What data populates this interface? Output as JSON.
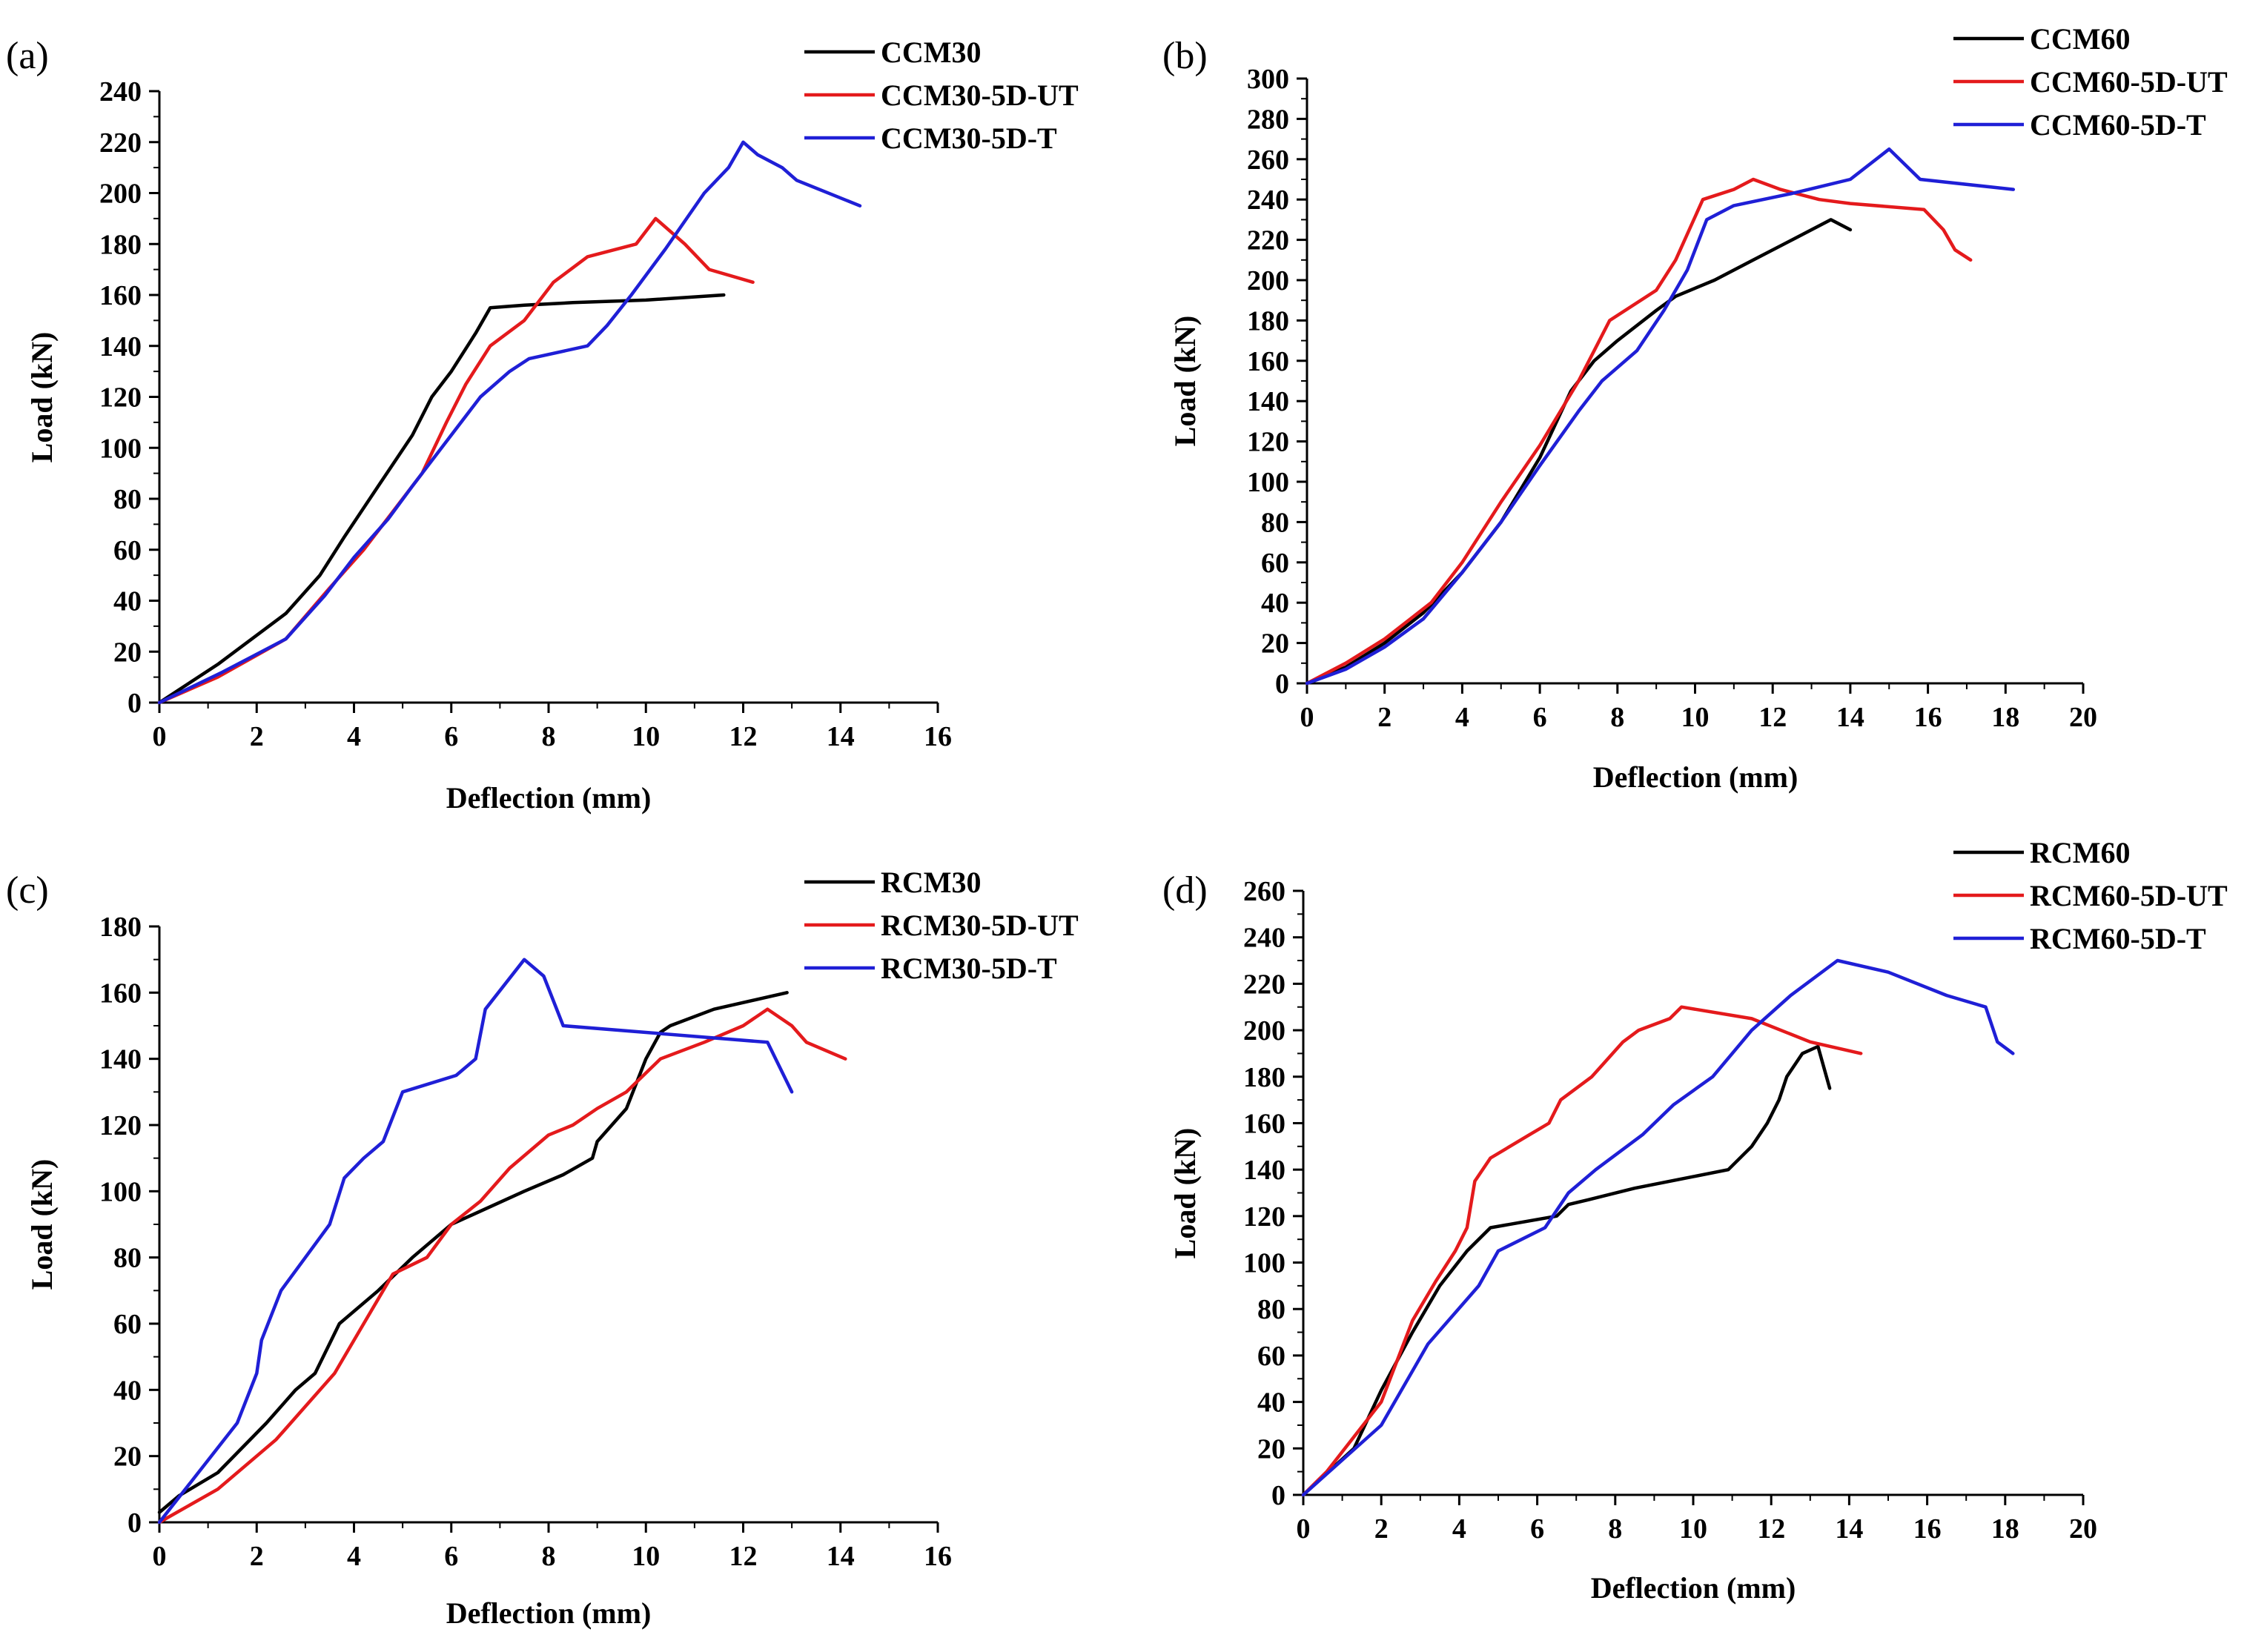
{
  "figure_title": "",
  "colors": {
    "black": "#000000",
    "red": "#e41a1c",
    "blue": "#1f1fd6"
  },
  "chart_data": [
    {
      "type": "line",
      "panel_label": "(a)",
      "xlabel": "Deflection (mm)",
      "ylabel": "Load (kN)",
      "xlim": [
        0,
        16
      ],
      "ylim": [
        0,
        240
      ],
      "xticks": [
        0,
        2,
        4,
        6,
        8,
        10,
        12,
        14,
        16
      ],
      "yticks": [
        0,
        20,
        40,
        60,
        80,
        100,
        120,
        140,
        160,
        180,
        200,
        220,
        240
      ],
      "grid": false,
      "legend_position": "top-right",
      "series": [
        {
          "name": "CCM30",
          "color": "#000000",
          "x": [
            0,
            1.2,
            2.6,
            3.3,
            3.8,
            4.5,
            5.2,
            5.6,
            6.0,
            6.5,
            6.8,
            7.5,
            8.5,
            10.0,
            11.6
          ],
          "y": [
            0,
            15,
            35,
            50,
            65,
            85,
            105,
            120,
            130,
            145,
            155,
            156,
            157,
            158,
            160
          ]
        },
        {
          "name": "CCM30-5D-UT",
          "color": "#e41a1c",
          "x": [
            0,
            1.2,
            2.6,
            3.5,
            4.2,
            4.8,
            5.4,
            5.9,
            6.3,
            6.8,
            7.5,
            8.1,
            8.8,
            9.8,
            10.2,
            10.8,
            11.3,
            12.2
          ],
          "y": [
            0,
            10,
            25,
            45,
            60,
            75,
            90,
            110,
            125,
            140,
            150,
            165,
            175,
            180,
            190,
            180,
            170,
            165
          ]
        },
        {
          "name": "CCM30-5D-T",
          "color": "#1f1fd6",
          "x": [
            0,
            1.3,
            2.6,
            3.4,
            4.0,
            4.7,
            5.2,
            5.8,
            6.6,
            7.2,
            7.6,
            8.8,
            9.2,
            9.7,
            10.4,
            11.2,
            11.7,
            12.0,
            12.3,
            12.8,
            13.1,
            14.4
          ],
          "y": [
            0,
            12,
            25,
            42,
            57,
            72,
            85,
            100,
            120,
            130,
            135,
            140,
            148,
            160,
            178,
            200,
            210,
            220,
            215,
            210,
            205,
            195
          ]
        }
      ]
    },
    {
      "type": "line",
      "panel_label": "(b)",
      "xlabel": "Deflection (mm)",
      "ylabel": "Load (kN)",
      "xlim": [
        0,
        20
      ],
      "ylim": [
        0,
        300
      ],
      "xticks": [
        0,
        2,
        4,
        6,
        8,
        10,
        12,
        14,
        16,
        18,
        20
      ],
      "yticks": [
        0,
        20,
        40,
        60,
        80,
        100,
        120,
        140,
        160,
        180,
        200,
        220,
        240,
        260,
        280,
        300
      ],
      "grid": false,
      "legend_position": "top-right",
      "series": [
        {
          "name": "CCM60",
          "color": "#000000",
          "x": [
            0,
            1,
            2,
            3,
            4,
            5,
            6,
            6.8,
            7.4,
            8,
            9,
            9.5,
            10.5,
            11.5,
            12.5,
            13.5,
            14.0
          ],
          "y": [
            0,
            8,
            20,
            35,
            55,
            80,
            112,
            145,
            160,
            170,
            185,
            192,
            200,
            210,
            220,
            230,
            225
          ]
        },
        {
          "name": "CCM60-5D-UT",
          "color": "#e41a1c",
          "x": [
            0,
            1,
            2,
            3.2,
            4,
            5,
            6,
            7,
            7.8,
            9,
            9.5,
            10.2,
            11.0,
            11.5,
            12.2,
            13.2,
            14.0,
            15.9,
            16.4,
            16.7,
            17.1
          ],
          "y": [
            0,
            10,
            22,
            40,
            60,
            90,
            118,
            150,
            180,
            195,
            210,
            240,
            245,
            250,
            245,
            240,
            238,
            235,
            225,
            215,
            210
          ]
        },
        {
          "name": "CCM60-5D-T",
          "color": "#1f1fd6",
          "x": [
            0,
            1,
            2,
            3,
            4,
            5,
            6,
            7,
            7.6,
            8.5,
            9.2,
            9.8,
            10.3,
            11,
            12.5,
            14,
            15,
            15.8,
            18.2
          ],
          "y": [
            0,
            7,
            18,
            32,
            55,
            80,
            108,
            135,
            150,
            165,
            185,
            205,
            230,
            237,
            243,
            250,
            265,
            250,
            245
          ]
        }
      ]
    },
    {
      "type": "line",
      "panel_label": "(c)",
      "xlabel": "Deflection (mm)",
      "ylabel": "Load (kN)",
      "xlim": [
        0,
        16
      ],
      "ylim": [
        0,
        180
      ],
      "xticks": [
        0,
        2,
        4,
        6,
        8,
        10,
        12,
        14,
        16
      ],
      "yticks": [
        0,
        20,
        40,
        60,
        80,
        100,
        120,
        140,
        160,
        180
      ],
      "grid": false,
      "legend_position": "top-right",
      "series": [
        {
          "name": "RCM30",
          "color": "#000000",
          "x": [
            0,
            0.4,
            1.2,
            2.2,
            2.8,
            3.2,
            3.7,
            4.5,
            5.2,
            6.0,
            7.5,
            8.3,
            8.9,
            9.0,
            9.6,
            10.0,
            10.3,
            10.5,
            11.4,
            12.9
          ],
          "y": [
            3,
            8,
            15,
            30,
            40,
            45,
            60,
            70,
            80,
            90,
            100,
            105,
            110,
            115,
            125,
            140,
            148,
            150,
            155,
            160
          ]
        },
        {
          "name": "RCM30-5D-UT",
          "color": "#e41a1c",
          "x": [
            0,
            1.2,
            2.4,
            3.6,
            4.2,
            4.8,
            5.5,
            6.0,
            6.6,
            7.2,
            8.0,
            8.5,
            9.0,
            9.6,
            10.3,
            11.2,
            12.0,
            12.5,
            13.0,
            13.3,
            14.1
          ],
          "y": [
            0,
            10,
            25,
            45,
            60,
            75,
            80,
            90,
            97,
            107,
            117,
            120,
            125,
            130,
            140,
            145,
            150,
            155,
            150,
            145,
            140
          ]
        },
        {
          "name": "RCM30-5D-T",
          "color": "#1f1fd6",
          "x": [
            0,
            0.8,
            1.6,
            2.0,
            2.1,
            2.5,
            3.0,
            3.5,
            3.8,
            4.2,
            4.6,
            5.0,
            6.1,
            6.5,
            6.7,
            7.5,
            7.9,
            8.3,
            12.5,
            13.0
          ],
          "y": [
            0,
            15,
            30,
            45,
            55,
            70,
            80,
            90,
            104,
            110,
            115,
            130,
            135,
            140,
            155,
            170,
            165,
            150,
            145,
            130
          ]
        }
      ]
    },
    {
      "type": "line",
      "panel_label": "(d)",
      "xlabel": "Deflection (mm)",
      "ylabel": "Load (kN)",
      "xlim": [
        0,
        20
      ],
      "ylim": [
        0,
        260
      ],
      "xticks": [
        0,
        2,
        4,
        6,
        8,
        10,
        12,
        14,
        16,
        18,
        20
      ],
      "yticks": [
        0,
        20,
        40,
        60,
        80,
        100,
        120,
        140,
        160,
        180,
        200,
        220,
        240,
        260
      ],
      "grid": false,
      "legend_position": "top-right",
      "series": [
        {
          "name": "RCM60",
          "color": "#000000",
          "x": [
            0,
            1.3,
            2.0,
            2.8,
            3.5,
            4.2,
            4.8,
            6.5,
            6.8,
            7.3,
            8.5,
            10.0,
            10.9,
            11.5,
            11.9,
            12.2,
            12.4,
            12.8,
            13.2,
            13.5
          ],
          "y": [
            0,
            20,
            45,
            70,
            90,
            105,
            115,
            120,
            125,
            127,
            132,
            137,
            140,
            150,
            160,
            170,
            180,
            190,
            193,
            175
          ]
        },
        {
          "name": "RCM60-5D-UT",
          "color": "#e41a1c",
          "x": [
            0,
            0.6,
            1.3,
            2.0,
            2.8,
            3.4,
            3.9,
            4.2,
            4.4,
            4.8,
            5.8,
            6.3,
            6.6,
            7.4,
            8.2,
            8.6,
            9.4,
            9.7,
            11.5,
            13.0,
            14.3
          ],
          "y": [
            0,
            10,
            25,
            40,
            75,
            92,
            105,
            115,
            135,
            145,
            155,
            160,
            170,
            180,
            195,
            200,
            205,
            210,
            205,
            195,
            190
          ]
        },
        {
          "name": "RCM60-5D-T",
          "color": "#1f1fd6",
          "x": [
            0,
            1.0,
            2.0,
            3.2,
            4.5,
            5.0,
            6.2,
            6.8,
            7.5,
            8.7,
            9.5,
            10.5,
            11.5,
            12.5,
            13.7,
            15.0,
            16.5,
            17.5,
            17.8,
            18.2
          ],
          "y": [
            0,
            15,
            30,
            65,
            90,
            105,
            115,
            130,
            140,
            155,
            168,
            180,
            200,
            215,
            230,
            225,
            215,
            210,
            195,
            190
          ]
        }
      ]
    }
  ]
}
